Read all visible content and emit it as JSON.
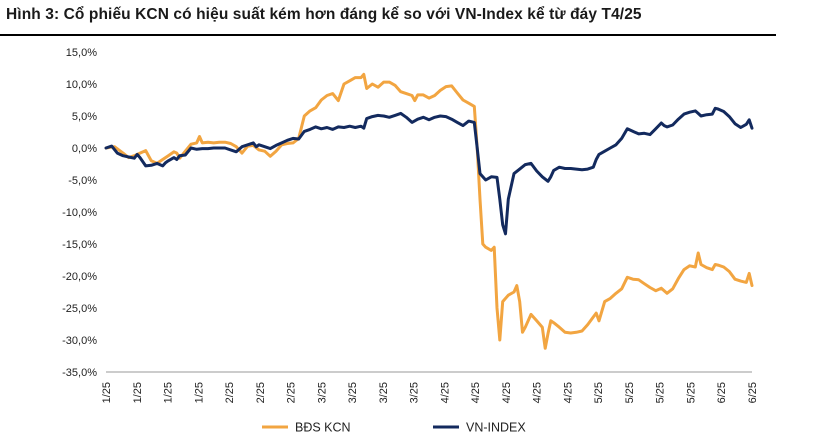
{
  "title": "Hình 3: Cổ phiếu KCN có hiệu suất kém hơn đáng kể so với VN-Index kể từ đáy T4/25",
  "chart_data": {
    "type": "line",
    "ylim": [
      -35,
      15
    ],
    "y_ticks": [
      15,
      10,
      5,
      0,
      -5,
      -10,
      -15,
      -20,
      -25,
      -30,
      -35
    ],
    "y_tick_labels": [
      "15,0%",
      "10,0%",
      "5,0%",
      "0,0%",
      "-5,0%",
      "-10,0%",
      "-15,0%",
      "-20,0%",
      "-25,0%",
      "-30,0%",
      "-35,0%"
    ],
    "x_tick_labels": [
      "1/25",
      "1/25",
      "1/25",
      "1/25",
      "2/25",
      "2/25",
      "2/25",
      "3/25",
      "3/25",
      "3/25",
      "3/25",
      "4/25",
      "4/25",
      "4/25",
      "4/25",
      "4/25",
      "5/25",
      "5/25",
      "5/25",
      "5/25",
      "6/25",
      "6/25"
    ],
    "legend_position": "bottom",
    "grid": false,
    "series": [
      {
        "name": "BĐS KCN",
        "color": "#F2A541",
        "points": [
          [
            0,
            0
          ],
          [
            1.5,
            0.2
          ],
          [
            3,
            -0.8
          ],
          [
            4,
            -1.5
          ],
          [
            5,
            -1.2
          ],
          [
            6,
            -0.8
          ],
          [
            7,
            -0.4
          ],
          [
            8,
            -2
          ],
          [
            9,
            -2.4
          ],
          [
            10,
            -1.8
          ],
          [
            11,
            -1.2
          ],
          [
            12,
            -0.6
          ],
          [
            12.5,
            -0.8
          ],
          [
            13,
            -1.6
          ],
          [
            14,
            -0.5
          ],
          [
            15,
            0.6
          ],
          [
            16,
            0.8
          ],
          [
            16.5,
            1.8
          ],
          [
            17,
            0.8
          ],
          [
            18,
            0.9
          ],
          [
            19,
            0.8
          ],
          [
            20,
            0.9
          ],
          [
            21,
            0.9
          ],
          [
            22,
            0.7
          ],
          [
            23,
            0.2
          ],
          [
            24,
            -0.8
          ],
          [
            25,
            0.3
          ],
          [
            26,
            0.4
          ],
          [
            27,
            -0.3
          ],
          [
            28,
            -0.5
          ],
          [
            29,
            -1.3
          ],
          [
            30,
            -0.5
          ],
          [
            31,
            0.5
          ],
          [
            32,
            0.7
          ],
          [
            33,
            0.8
          ],
          [
            34,
            1.5
          ],
          [
            35,
            5
          ],
          [
            36,
            5.8
          ],
          [
            37,
            6.3
          ],
          [
            38,
            7.5
          ],
          [
            39,
            8.2
          ],
          [
            40,
            8.5
          ],
          [
            41,
            7.4
          ],
          [
            42,
            10
          ],
          [
            43,
            10.5
          ],
          [
            44,
            11
          ],
          [
            45,
            11
          ],
          [
            45.5,
            11.5
          ],
          [
            46,
            9.3
          ],
          [
            47,
            10
          ],
          [
            48,
            9.5
          ],
          [
            49,
            10.3
          ],
          [
            50,
            10.3
          ],
          [
            51,
            9.8
          ],
          [
            52,
            8.8
          ],
          [
            53,
            8.5
          ],
          [
            54,
            8.2
          ],
          [
            54.5,
            7.4
          ],
          [
            55,
            8.3
          ],
          [
            56,
            8.3
          ],
          [
            57,
            7.8
          ],
          [
            58,
            8.2
          ],
          [
            59,
            9
          ],
          [
            60,
            9.6
          ],
          [
            61,
            9.7
          ],
          [
            62,
            8.6
          ],
          [
            63,
            7.5
          ],
          [
            64,
            7
          ],
          [
            65,
            6.5
          ],
          [
            65.5,
            0
          ],
          [
            66,
            -8
          ],
          [
            66.5,
            -15
          ],
          [
            67,
            -15.5
          ],
          [
            68,
            -16
          ],
          [
            68.5,
            -15.5
          ],
          [
            69,
            -25
          ],
          [
            69.5,
            -30
          ],
          [
            70,
            -24
          ],
          [
            71,
            -23
          ],
          [
            72,
            -22.5
          ],
          [
            72.5,
            -21.5
          ],
          [
            73,
            -24
          ],
          [
            73.5,
            -28.8
          ],
          [
            74,
            -28
          ],
          [
            75,
            -26
          ],
          [
            76,
            -27
          ],
          [
            77,
            -28
          ],
          [
            77.5,
            -31.3
          ],
          [
            78,
            -29
          ],
          [
            78.5,
            -27
          ],
          [
            79,
            -27.3
          ],
          [
            80,
            -28
          ],
          [
            81,
            -28.8
          ],
          [
            82,
            -28.9
          ],
          [
            83,
            -28.8
          ],
          [
            84,
            -28.6
          ],
          [
            85,
            -27.6
          ],
          [
            86,
            -26.4
          ],
          [
            86.5,
            -25.8
          ],
          [
            87,
            -27
          ],
          [
            88,
            -24
          ],
          [
            89,
            -23.5
          ],
          [
            90,
            -22.7
          ],
          [
            91,
            -22
          ],
          [
            92,
            -20.2
          ],
          [
            93,
            -20.5
          ],
          [
            94,
            -20.6
          ],
          [
            95,
            -21.2
          ],
          [
            96,
            -21.8
          ],
          [
            97,
            -22.3
          ],
          [
            98,
            -21.9
          ],
          [
            99,
            -22.7
          ],
          [
            100,
            -22
          ],
          [
            101,
            -20.4
          ],
          [
            102,
            -19
          ],
          [
            103,
            -18.4
          ],
          [
            104,
            -18.6
          ],
          [
            104.5,
            -16.4
          ],
          [
            105,
            -18.2
          ],
          [
            106,
            -18.7
          ],
          [
            107,
            -19
          ],
          [
            107.5,
            -18.2
          ],
          [
            108,
            -18.3
          ],
          [
            109,
            -18.6
          ],
          [
            110,
            -19.3
          ],
          [
            111,
            -20.5
          ],
          [
            112,
            -20.8
          ],
          [
            113,
            -21
          ],
          [
            113.5,
            -19.6
          ],
          [
            114,
            -21.5
          ]
        ]
      },
      {
        "name": "VN-INDEX",
        "color": "#132A5E",
        "points": [
          [
            0,
            0
          ],
          [
            1,
            0.3
          ],
          [
            2,
            -0.8
          ],
          [
            3,
            -1.2
          ],
          [
            4,
            -1.4
          ],
          [
            5,
            -1.6
          ],
          [
            5.5,
            -1
          ],
          [
            6,
            -1.5
          ],
          [
            7,
            -2.8
          ],
          [
            8,
            -2.7
          ],
          [
            9,
            -2.4
          ],
          [
            10,
            -2.8
          ],
          [
            10.5,
            -2.3
          ],
          [
            11,
            -2
          ],
          [
            12,
            -1.5
          ],
          [
            12.5,
            -1.8
          ],
          [
            13,
            -1.2
          ],
          [
            14,
            -1.1
          ],
          [
            15,
            0
          ],
          [
            16,
            -0.2
          ],
          [
            17,
            -0.1
          ],
          [
            18,
            -0.1
          ],
          [
            19,
            0
          ],
          [
            20,
            0
          ],
          [
            21,
            0
          ],
          [
            22,
            -0.3
          ],
          [
            23,
            -0.6
          ],
          [
            24,
            0.2
          ],
          [
            25,
            0.5
          ],
          [
            26,
            0.8
          ],
          [
            26.5,
            0.2
          ],
          [
            27,
            0.5
          ],
          [
            28,
            0.2
          ],
          [
            29,
            -0.1
          ],
          [
            30,
            0.4
          ],
          [
            31,
            0.8
          ],
          [
            32,
            1.2
          ],
          [
            33,
            1.5
          ],
          [
            34,
            1.4
          ],
          [
            35,
            2.6
          ],
          [
            36,
            2.9
          ],
          [
            37,
            3.3
          ],
          [
            38,
            3
          ],
          [
            39,
            3.2
          ],
          [
            40,
            2.9
          ],
          [
            41,
            3.3
          ],
          [
            42,
            3.2
          ],
          [
            43,
            3.4
          ],
          [
            44,
            3.2
          ],
          [
            45,
            3.4
          ],
          [
            45.5,
            3.1
          ],
          [
            46,
            4.6
          ],
          [
            47,
            4.9
          ],
          [
            48,
            5.1
          ],
          [
            49,
            5
          ],
          [
            50,
            4.8
          ],
          [
            51,
            5.1
          ],
          [
            52,
            5.4
          ],
          [
            53,
            4.8
          ],
          [
            54,
            4
          ],
          [
            55,
            4.5
          ],
          [
            56,
            4.8
          ],
          [
            57,
            4.4
          ],
          [
            58,
            4.8
          ],
          [
            59,
            5
          ],
          [
            60,
            4.9
          ],
          [
            61,
            4.5
          ],
          [
            62,
            4
          ],
          [
            63,
            3.5
          ],
          [
            64,
            4.2
          ],
          [
            65,
            4
          ],
          [
            65.5,
            0
          ],
          [
            66,
            -4
          ],
          [
            67,
            -5
          ],
          [
            68,
            -4.5
          ],
          [
            69,
            -4.6
          ],
          [
            69.5,
            -8
          ],
          [
            70,
            -12
          ],
          [
            70.5,
            -13.4
          ],
          [
            71,
            -8
          ],
          [
            72,
            -4
          ],
          [
            73,
            -3.3
          ],
          [
            74,
            -2.6
          ],
          [
            75,
            -2.4
          ],
          [
            76,
            -3.6
          ],
          [
            77,
            -4.5
          ],
          [
            78,
            -5.2
          ],
          [
            78.5,
            -4.5
          ],
          [
            79,
            -3.5
          ],
          [
            80,
            -3
          ],
          [
            81,
            -3.2
          ],
          [
            82,
            -3.2
          ],
          [
            83,
            -3.3
          ],
          [
            84,
            -3.4
          ],
          [
            85,
            -3.3
          ],
          [
            86,
            -3
          ],
          [
            86.5,
            -1.8
          ],
          [
            87,
            -1
          ],
          [
            88,
            -0.5
          ],
          [
            89,
            0
          ],
          [
            90,
            0.5
          ],
          [
            91,
            1.5
          ],
          [
            92,
            3
          ],
          [
            93,
            2.6
          ],
          [
            94,
            2.2
          ],
          [
            95,
            2.3
          ],
          [
            96,
            2.1
          ],
          [
            97,
            3
          ],
          [
            98,
            3.9
          ],
          [
            98.5,
            3.5
          ],
          [
            99,
            3.3
          ],
          [
            100,
            3.6
          ],
          [
            101,
            4.5
          ],
          [
            102,
            5.3
          ],
          [
            103,
            5.6
          ],
          [
            104,
            5.8
          ],
          [
            104.5,
            5.4
          ],
          [
            105,
            5
          ],
          [
            106,
            5.2
          ],
          [
            107,
            5.3
          ],
          [
            107.5,
            6.2
          ],
          [
            108,
            6.1
          ],
          [
            109,
            5.7
          ],
          [
            110,
            4.9
          ],
          [
            111,
            3.8
          ],
          [
            112,
            3.2
          ],
          [
            113,
            3.7
          ],
          [
            113.5,
            4.4
          ],
          [
            114,
            3.1
          ]
        ]
      }
    ]
  }
}
